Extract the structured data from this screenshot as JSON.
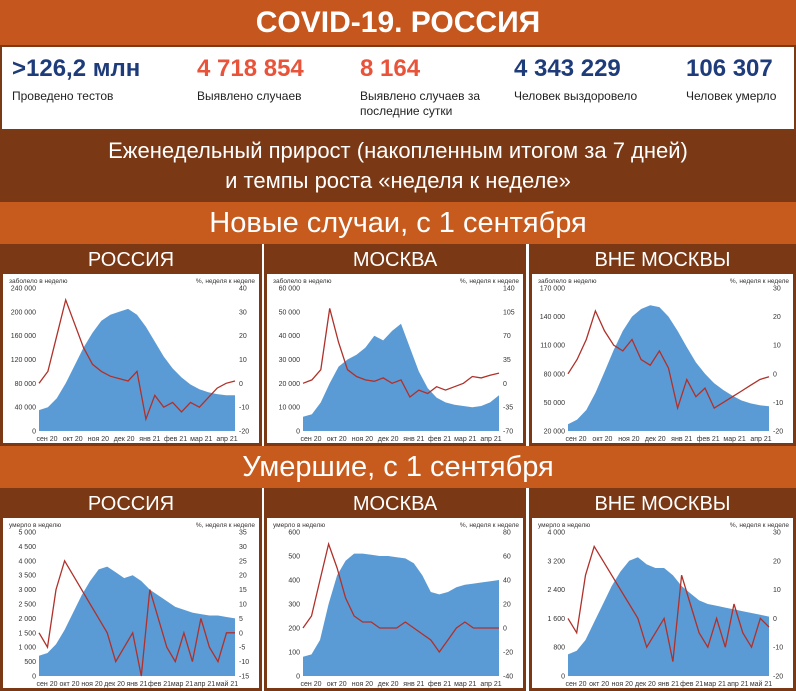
{
  "title": "COVID-19. РОССИЯ",
  "stats": [
    {
      "value": ">126,2 млн",
      "label": "Проведено тестов",
      "color": "#1f3c7a"
    },
    {
      "value": "4 718 854",
      "label": "Выявлено случаев",
      "color": "#e8533a"
    },
    {
      "value": "8 164",
      "label": "Выявлено случаев за последние сутки",
      "color": "#e8533a"
    },
    {
      "value": "4 343 229",
      "label": "Человек выздоровело",
      "color": "#1f3c7a"
    },
    {
      "value": "106 307",
      "label": "Человек умерло",
      "color": "#1f3c7a"
    }
  ],
  "subhead_line1": "Еженедельный прирост (накопленным итогом за 7 дней)",
  "subhead_line2": "и темпы роста «неделя к неделе»",
  "section_cases": "Новые случаи, с 1 сентября",
  "section_deaths": "Умершие, с 1 сентября",
  "colors": {
    "area": "#5b9bd5",
    "line": "#b0302a"
  },
  "chart_data": [
    {
      "type": "area",
      "panel": "РОССИЯ",
      "left_label": "заболело в неделю",
      "right_label": "%, неделя к неделе",
      "xticks": [
        "сен 20",
        "окт 20",
        "ноя 20",
        "дек 20",
        "янв 21",
        "фев 21",
        "мар 21",
        "апр 21"
      ],
      "yticks_left": [
        "240 000",
        "200 000",
        "160 000",
        "120 000",
        "80 000",
        "40 000",
        "0"
      ],
      "yticks_right": [
        "40",
        "30",
        "20",
        "10",
        "0",
        "-10",
        "-20"
      ],
      "ylim_left": [
        0,
        240000
      ],
      "ylim_right": [
        -20,
        40
      ],
      "area_values": [
        35000,
        40000,
        55000,
        80000,
        110000,
        140000,
        165000,
        185000,
        195000,
        200000,
        205000,
        195000,
        175000,
        150000,
        125000,
        105000,
        90000,
        78000,
        70000,
        65000,
        62000,
        60000,
        60000
      ],
      "line_values": [
        0,
        5,
        20,
        35,
        25,
        15,
        8,
        5,
        3,
        2,
        1,
        5,
        -15,
        -5,
        -10,
        -8,
        -12,
        -8,
        -10,
        -6,
        -2,
        0,
        1
      ]
    },
    {
      "type": "area",
      "panel": "МОСКВА",
      "left_label": "заболело в неделю",
      "right_label": "%, неделя к неделе",
      "xticks": [
        "сен 20",
        "окт 20",
        "ноя 20",
        "дек 20",
        "янв 21",
        "фев 21",
        "мар 21",
        "апр 21"
      ],
      "yticks_left": [
        "60 000",
        "50 000",
        "40 000",
        "30 000",
        "20 000",
        "10 000",
        "0"
      ],
      "yticks_right": [
        "140",
        "105",
        "70",
        "35",
        "0",
        "-35",
        "-70"
      ],
      "ylim_left": [
        0,
        60000
      ],
      "ylim_right": [
        -70,
        140
      ],
      "area_values": [
        6000,
        7000,
        12000,
        20000,
        27000,
        30000,
        32000,
        35000,
        40000,
        38000,
        42000,
        45000,
        35000,
        25000,
        18000,
        14000,
        12000,
        11000,
        10500,
        10000,
        10500,
        12000,
        15000
      ],
      "line_values": [
        0,
        5,
        20,
        110,
        60,
        20,
        10,
        5,
        3,
        8,
        0,
        5,
        -20,
        -10,
        -15,
        -5,
        -10,
        -5,
        0,
        10,
        8,
        12,
        15
      ]
    },
    {
      "type": "area",
      "panel": "ВНЕ МОСКВЫ",
      "left_label": "заболело в неделю",
      "right_label": "%, неделя к неделе",
      "xticks": [
        "сен 20",
        "окт 20",
        "ноя 20",
        "дек 20",
        "янв 21",
        "фев 21",
        "мар 21",
        "апр 21"
      ],
      "yticks_left": [
        "170 000",
        "140 000",
        "110 000",
        "80 000",
        "50 000",
        "20 000"
      ],
      "yticks_right": [
        "30",
        "20",
        "10",
        "0",
        "-10",
        "-20"
      ],
      "ylim_left": [
        20000,
        170000
      ],
      "ylim_right": [
        -20,
        30
      ],
      "area_values": [
        27000,
        32000,
        42000,
        60000,
        82000,
        105000,
        125000,
        140000,
        148000,
        152000,
        150000,
        140000,
        125000,
        108000,
        92000,
        80000,
        70000,
        63000,
        57000,
        52000,
        49000,
        47000,
        46000
      ],
      "line_values": [
        0,
        5,
        12,
        22,
        15,
        10,
        8,
        12,
        5,
        3,
        8,
        2,
        -12,
        -2,
        -8,
        -5,
        -12,
        -10,
        -8,
        -6,
        -4,
        -2,
        -1
      ]
    },
    {
      "type": "area",
      "panel": "РОССИЯ",
      "left_label": "умерло в неделю",
      "right_label": "%, неделя к неделе",
      "xticks": [
        "сен 20",
        "окт 20",
        "ноя 20",
        "дек 20",
        "янв 21",
        "фев 21",
        "мар 21",
        "апр 21",
        "май 21"
      ],
      "yticks_left": [
        "5 000",
        "4 500",
        "4 000",
        "3 500",
        "3 000",
        "2 500",
        "2 000",
        "1 500",
        "1 000",
        "500",
        "0"
      ],
      "yticks_right": [
        "35",
        "30",
        "25",
        "20",
        "15",
        "10",
        "5",
        "0",
        "-5",
        "-10",
        "-15"
      ],
      "ylim_left": [
        0,
        5000
      ],
      "ylim_right": [
        -15,
        35
      ],
      "area_values": [
        700,
        800,
        1100,
        1600,
        2200,
        2800,
        3300,
        3700,
        3800,
        3600,
        3400,
        3500,
        3300,
        3000,
        2800,
        2600,
        2400,
        2300,
        2200,
        2150,
        2100,
        2100,
        2050,
        2000
      ],
      "line_values": [
        0,
        -5,
        15,
        25,
        20,
        15,
        10,
        5,
        0,
        -10,
        -5,
        0,
        -15,
        15,
        5,
        -5,
        -10,
        0,
        -10,
        5,
        -5,
        -10,
        0,
        0
      ]
    },
    {
      "type": "area",
      "panel": "МОСКВА",
      "left_label": "умерло в неделю",
      "right_label": "%, неделя к неделе",
      "xticks": [
        "сен 20",
        "окт 20",
        "ноя 20",
        "дек 20",
        "янв 21",
        "фев 21",
        "мар 21",
        "апр 21"
      ],
      "yticks_left": [
        "600",
        "500",
        "400",
        "300",
        "200",
        "100",
        "0"
      ],
      "yticks_right": [
        "80",
        "60",
        "40",
        "20",
        "0",
        "-20",
        "-40"
      ],
      "ylim_left": [
        0,
        600
      ],
      "ylim_right": [
        -40,
        80
      ],
      "area_values": [
        80,
        90,
        150,
        300,
        420,
        480,
        510,
        510,
        505,
        500,
        500,
        495,
        490,
        470,
        420,
        350,
        340,
        350,
        370,
        380,
        385,
        390,
        395,
        400
      ],
      "line_values": [
        0,
        10,
        40,
        70,
        50,
        25,
        10,
        5,
        5,
        0,
        0,
        0,
        5,
        0,
        -5,
        -10,
        -20,
        -10,
        0,
        5,
        0,
        0,
        0,
        0
      ]
    },
    {
      "type": "area",
      "panel": "ВНЕ МОСКВЫ",
      "left_label": "умерло в неделю",
      "right_label": "%, неделя к неделе",
      "xticks": [
        "сен 20",
        "окт 20",
        "ноя 20",
        "дек 20",
        "янв 21",
        "фев 21",
        "мар 21",
        "апр 21",
        "май 21"
      ],
      "yticks_left": [
        "4 000",
        "3 200",
        "2 400",
        "1 600",
        "800",
        "0"
      ],
      "yticks_right": [
        "30",
        "20",
        "10",
        "0",
        "-10",
        "-20"
      ],
      "ylim_left": [
        0,
        4000
      ],
      "ylim_right": [
        -20,
        30
      ],
      "area_values": [
        600,
        700,
        1000,
        1500,
        2000,
        2500,
        2900,
        3200,
        3300,
        3100,
        3000,
        3000,
        2800,
        2500,
        2300,
        2100,
        2000,
        1950,
        1900,
        1850,
        1800,
        1750,
        1700,
        1650
      ],
      "line_values": [
        0,
        -5,
        15,
        25,
        20,
        15,
        10,
        5,
        0,
        -10,
        -5,
        0,
        -15,
        15,
        5,
        -5,
        -10,
        0,
        -10,
        5,
        -5,
        -10,
        0,
        -3
      ]
    }
  ]
}
